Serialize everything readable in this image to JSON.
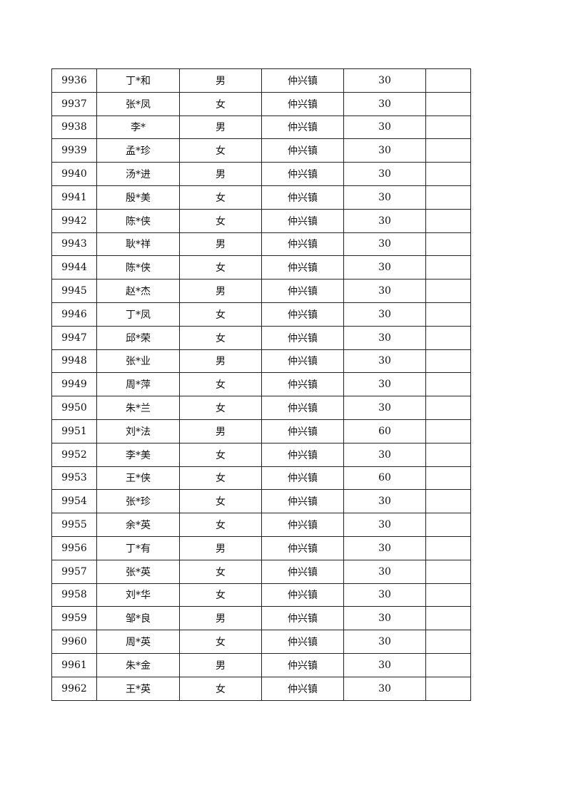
{
  "rows": [
    {
      "id": "9936",
      "name": "丁*和",
      "gender": "男",
      "town": "仲兴镇",
      "amount": "30",
      "note": ""
    },
    {
      "id": "9937",
      "name": "张*凤",
      "gender": "女",
      "town": "仲兴镇",
      "amount": "30",
      "note": ""
    },
    {
      "id": "9938",
      "name": "李*",
      "gender": "男",
      "town": "仲兴镇",
      "amount": "30",
      "note": ""
    },
    {
      "id": "9939",
      "name": "孟*珍",
      "gender": "女",
      "town": "仲兴镇",
      "amount": "30",
      "note": ""
    },
    {
      "id": "9940",
      "name": "汤*进",
      "gender": "男",
      "town": "仲兴镇",
      "amount": "30",
      "note": ""
    },
    {
      "id": "9941",
      "name": "殷*美",
      "gender": "女",
      "town": "仲兴镇",
      "amount": "30",
      "note": ""
    },
    {
      "id": "9942",
      "name": "陈*侠",
      "gender": "女",
      "town": "仲兴镇",
      "amount": "30",
      "note": ""
    },
    {
      "id": "9943",
      "name": "耿*祥",
      "gender": "男",
      "town": "仲兴镇",
      "amount": "30",
      "note": ""
    },
    {
      "id": "9944",
      "name": "陈*侠",
      "gender": "女",
      "town": "仲兴镇",
      "amount": "30",
      "note": ""
    },
    {
      "id": "9945",
      "name": "赵*杰",
      "gender": "男",
      "town": "仲兴镇",
      "amount": "30",
      "note": ""
    },
    {
      "id": "9946",
      "name": "丁*凤",
      "gender": "女",
      "town": "仲兴镇",
      "amount": "30",
      "note": ""
    },
    {
      "id": "9947",
      "name": "邱*荣",
      "gender": "女",
      "town": "仲兴镇",
      "amount": "30",
      "note": ""
    },
    {
      "id": "9948",
      "name": "张*业",
      "gender": "男",
      "town": "仲兴镇",
      "amount": "30",
      "note": ""
    },
    {
      "id": "9949",
      "name": "周*萍",
      "gender": "女",
      "town": "仲兴镇",
      "amount": "30",
      "note": ""
    },
    {
      "id": "9950",
      "name": "朱*兰",
      "gender": "女",
      "town": "仲兴镇",
      "amount": "30",
      "note": ""
    },
    {
      "id": "9951",
      "name": "刘*法",
      "gender": "男",
      "town": "仲兴镇",
      "amount": "60",
      "note": ""
    },
    {
      "id": "9952",
      "name": "李*美",
      "gender": "女",
      "town": "仲兴镇",
      "amount": "30",
      "note": ""
    },
    {
      "id": "9953",
      "name": "王*侠",
      "gender": "女",
      "town": "仲兴镇",
      "amount": "60",
      "note": ""
    },
    {
      "id": "9954",
      "name": "张*珍",
      "gender": "女",
      "town": "仲兴镇",
      "amount": "30",
      "note": ""
    },
    {
      "id": "9955",
      "name": "余*英",
      "gender": "女",
      "town": "仲兴镇",
      "amount": "30",
      "note": ""
    },
    {
      "id": "9956",
      "name": "丁*有",
      "gender": "男",
      "town": "仲兴镇",
      "amount": "30",
      "note": ""
    },
    {
      "id": "9957",
      "name": "张*英",
      "gender": "女",
      "town": "仲兴镇",
      "amount": "30",
      "note": ""
    },
    {
      "id": "9958",
      "name": "刘*华",
      "gender": "女",
      "town": "仲兴镇",
      "amount": "30",
      "note": ""
    },
    {
      "id": "9959",
      "name": "邹*良",
      "gender": "男",
      "town": "仲兴镇",
      "amount": "30",
      "note": ""
    },
    {
      "id": "9960",
      "name": "周*英",
      "gender": "女",
      "town": "仲兴镇",
      "amount": "30",
      "note": ""
    },
    {
      "id": "9961",
      "name": "朱*金",
      "gender": "男",
      "town": "仲兴镇",
      "amount": "30",
      "note": ""
    },
    {
      "id": "9962",
      "name": "王*英",
      "gender": "女",
      "town": "仲兴镇",
      "amount": "30",
      "note": ""
    }
  ]
}
